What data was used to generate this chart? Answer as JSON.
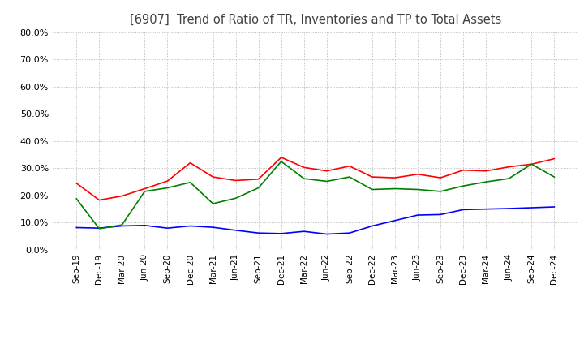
{
  "title": "[6907]  Trend of Ratio of TR, Inventories and TP to Total Assets",
  "x_labels": [
    "Sep-19",
    "Dec-19",
    "Mar-20",
    "Jun-20",
    "Sep-20",
    "Dec-20",
    "Mar-21",
    "Jun-21",
    "Sep-21",
    "Dec-21",
    "Mar-22",
    "Jun-22",
    "Sep-22",
    "Dec-22",
    "Mar-23",
    "Jun-23",
    "Sep-23",
    "Dec-23",
    "Mar-24",
    "Jun-24",
    "Sep-24",
    "Dec-24"
  ],
  "trade_receivables": [
    0.245,
    0.183,
    0.198,
    0.225,
    0.253,
    0.32,
    0.268,
    0.255,
    0.26,
    0.34,
    0.303,
    0.29,
    0.308,
    0.268,
    0.265,
    0.278,
    0.265,
    0.293,
    0.29,
    0.305,
    0.315,
    0.335
  ],
  "inventories": [
    0.082,
    0.08,
    0.088,
    0.09,
    0.08,
    0.088,
    0.083,
    0.072,
    0.062,
    0.06,
    0.068,
    0.058,
    0.062,
    0.088,
    0.108,
    0.128,
    0.13,
    0.148,
    0.15,
    0.152,
    0.155,
    0.158
  ],
  "trade_payables": [
    0.188,
    0.078,
    0.092,
    0.215,
    0.228,
    0.248,
    0.17,
    0.19,
    0.228,
    0.325,
    0.262,
    0.252,
    0.268,
    0.222,
    0.225,
    0.222,
    0.215,
    0.235,
    0.25,
    0.262,
    0.315,
    0.268
  ],
  "tr_color": "#FF0000",
  "inv_color": "#0000FF",
  "tp_color": "#008000",
  "ylim": [
    0.0,
    0.8
  ],
  "yticks": [
    0.0,
    0.1,
    0.2,
    0.3,
    0.4,
    0.5,
    0.6,
    0.7,
    0.8
  ],
  "background_color": "#FFFFFF",
  "grid_color": "#AAAAAA",
  "title_color": "#404040"
}
